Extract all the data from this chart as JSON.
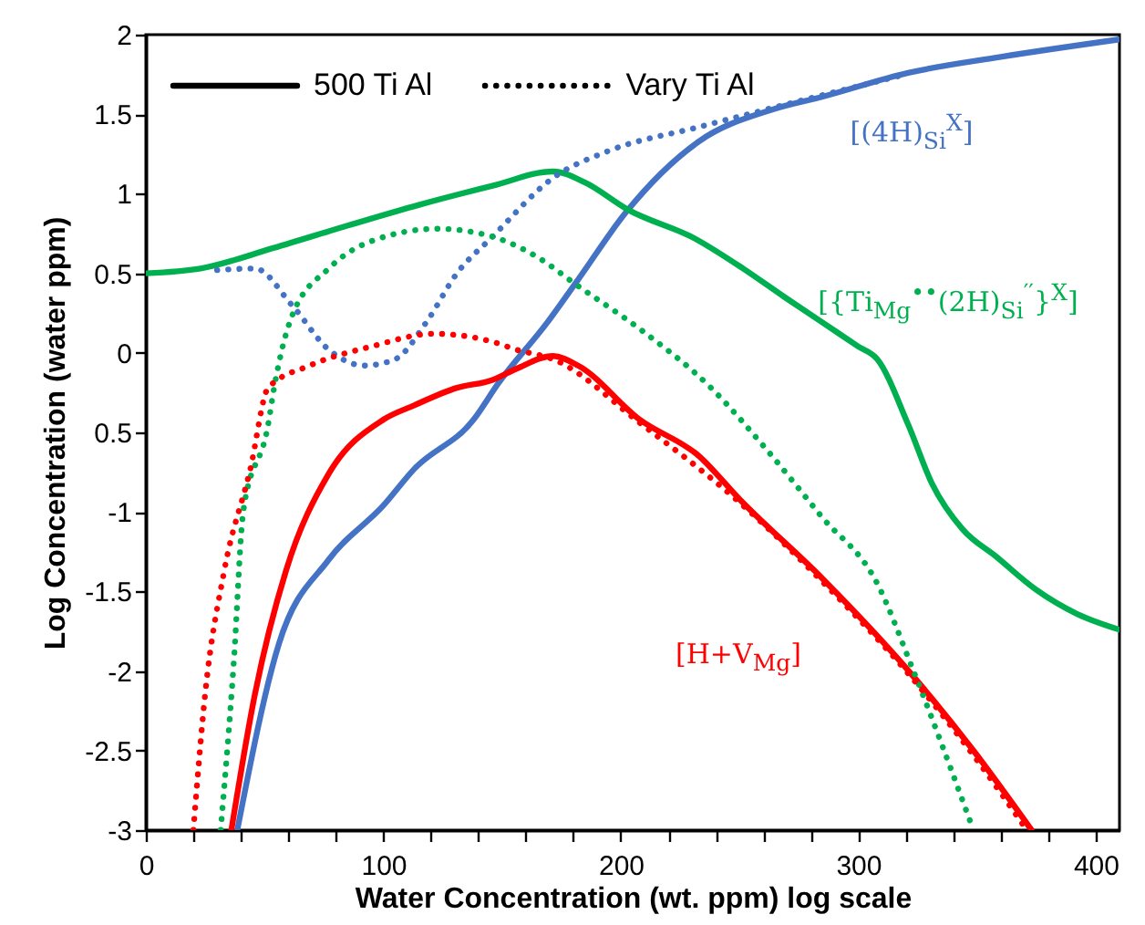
{
  "chart_data": {
    "type": "line",
    "xlabel": "Water Concentration (wt. ppm) log scale",
    "ylabel": "Log Concentration (water ppm)",
    "xlim": [
      0,
      410
    ],
    "ylim": [
      -3,
      2
    ],
    "xticks": [
      0,
      {
        "value": 20,
        "label": null
      },
      {
        "value": 40,
        "label": null
      },
      {
        "value": 60,
        "label": null
      },
      {
        "value": 80,
        "label": null
      },
      100,
      {
        "value": 120,
        "label": null
      },
      {
        "value": 140,
        "label": null
      },
      {
        "value": 160,
        "label": null
      },
      {
        "value": 180,
        "label": null
      },
      200,
      {
        "value": 220,
        "label": null
      },
      {
        "value": 240,
        "label": null
      },
      {
        "value": 260,
        "label": null
      },
      {
        "value": 280,
        "label": null
      },
      300,
      {
        "value": 320,
        "label": null
      },
      {
        "value": 340,
        "label": null
      },
      {
        "value": 360,
        "label": null
      },
      {
        "value": 380,
        "label": null
      },
      400
    ],
    "yticks": [
      2,
      1.5,
      1,
      0.5,
      0,
      {
        "value": -0.5,
        "label": "0.5"
      },
      -1,
      -1.5,
      -2,
      -2.5,
      -3
    ],
    "grid": false,
    "marker": "none",
    "annotations": [
      "500 Ti Al",
      "Vary Ti Al"
    ],
    "series": [
      {
        "name": "[(4H)$_{Si}$$^{X}$]",
        "color": "#4472c4",
        "line_style": "solid",
        "x": [
          38.5,
          56,
          77,
          100,
          113,
          138,
          148.5,
          169,
          182,
          202,
          233,
          264,
          285,
          321,
          360,
          410
        ],
        "values": [
          -3,
          -1.83,
          -1.3,
          -0.96,
          -0.73,
          -0.42,
          -0.19,
          0.19,
          0.46,
          0.88,
          1.33,
          1.53,
          1.61,
          1.76,
          1.86,
          1.97
        ]
      },
      {
        "name": "[{Ti$_{Mg}$$^{••}$(2H)$_{Si}$$^{′′}$}$^{X}$]",
        "color": "#00b050",
        "line_style": "solid",
        "x": [
          0,
          23,
          54,
          85,
          115,
          146,
          171.5,
          185,
          203,
          231,
          251.5,
          269,
          285,
          300,
          308,
          321,
          331,
          344,
          358,
          375,
          392,
          410
        ],
        "values": [
          0.5,
          0.53,
          0.66,
          0.8,
          0.93,
          1.05,
          1.14,
          1.07,
          0.9,
          0.72,
          0.53,
          0.35,
          0.19,
          0.04,
          -0.04,
          -0.45,
          -0.82,
          -1.11,
          -1.28,
          -1.49,
          -1.64,
          -1.74
        ]
      },
      {
        "name": "[H+V$_{Mg}$]",
        "color": "#ff0000",
        "line_style": "solid",
        "x": [
          36,
          46,
          59,
          77,
          100,
          113,
          131,
          146,
          156,
          171.5,
          182,
          208,
          233,
          250,
          285,
          323,
          348.5,
          373
        ],
        "values": [
          -3,
          -2.14,
          -1.37,
          -0.76,
          -0.42,
          -0.33,
          -0.22,
          -0.17,
          -0.1,
          -0.02,
          -0.08,
          -0.42,
          -0.65,
          -0.92,
          -1.42,
          -2.03,
          -2.5,
          -3
        ]
      },
      {
        "color": "#4472c4",
        "line_style": "dotted",
        "x": [
          30,
          46,
          61.5,
          77,
          92,
          105,
          118,
          131,
          146,
          171.5,
          195,
          233,
          285,
          320
        ],
        "values": [
          0.52,
          0.53,
          0.3,
          0.02,
          -0.08,
          -0.04,
          0.19,
          0.5,
          0.73,
          1.1,
          1.27,
          1.42,
          1.62,
          1.75
        ]
      },
      {
        "color": "#00b050",
        "line_style": "dotted",
        "x": [
          31.5,
          37,
          41,
          51.5,
          54,
          61.5,
          77,
          94.6,
          123,
          146,
          164,
          182,
          208,
          238,
          261.5,
          284.6,
          308,
          323,
          348.5
        ],
        "values": [
          -3,
          -1.95,
          -1,
          -0.45,
          -0.22,
          0.23,
          0.53,
          0.7,
          0.78,
          0.73,
          0.61,
          0.42,
          0.15,
          -0.22,
          -0.61,
          -1.03,
          -1.45,
          -1.99,
          -3
        ]
      },
      {
        "color": "#ff0000",
        "line_style": "dotted",
        "x": [
          20,
          25,
          33,
          44,
          51.5,
          69,
          95,
          121,
          146,
          156,
          171.5,
          208,
          250,
          285,
          323,
          348.5,
          371
        ],
        "values": [
          -3,
          -2.14,
          -1.37,
          -0.73,
          -0.22,
          -0.08,
          0.04,
          0.12,
          0.07,
          0.02,
          -0.04,
          -0.44,
          -0.94,
          -1.44,
          -2.05,
          -2.53,
          -3
        ]
      }
    ]
  }
}
